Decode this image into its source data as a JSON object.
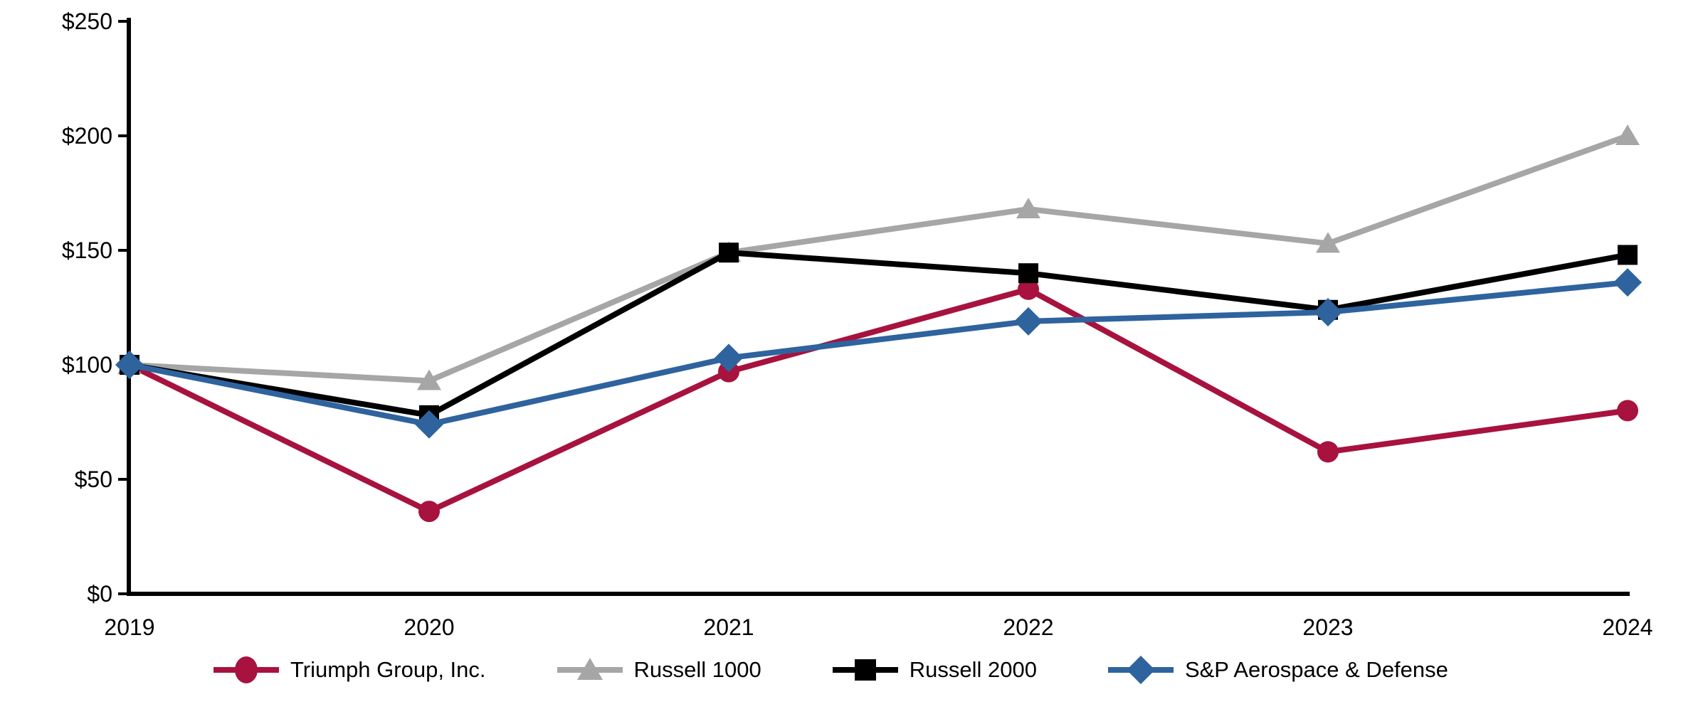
{
  "chart_data": {
    "type": "line",
    "title": "",
    "x_labels": [
      "2019",
      "2020",
      "2021",
      "2022",
      "2023",
      "2024"
    ],
    "y_axis": {
      "min": 0,
      "max": 250,
      "tick_step": 50,
      "tick_labels": [
        "$0",
        "$50",
        "$100",
        "$150",
        "$200",
        "$250"
      ]
    },
    "grid": false,
    "legend_position": "bottom",
    "axis_color": "#000000",
    "background_color": "#ffffff",
    "series": [
      {
        "name": "Triumph Group, Inc.",
        "color": "#A8123E",
        "marker": "circle",
        "values": [
          100,
          36,
          97,
          133,
          62,
          80
        ]
      },
      {
        "name": "Russell 1000",
        "color": "#A6A6A6",
        "marker": "triangle",
        "values": [
          100,
          93,
          149,
          168,
          153,
          200
        ]
      },
      {
        "name": "Russell 2000",
        "color": "#000000",
        "marker": "square",
        "values": [
          100,
          78,
          149,
          140,
          124,
          148
        ]
      },
      {
        "name": "S&P Aerospace & Defense",
        "color": "#2E639E",
        "marker": "diamond",
        "values": [
          100,
          74,
          103,
          119,
          123,
          136
        ]
      }
    ]
  }
}
